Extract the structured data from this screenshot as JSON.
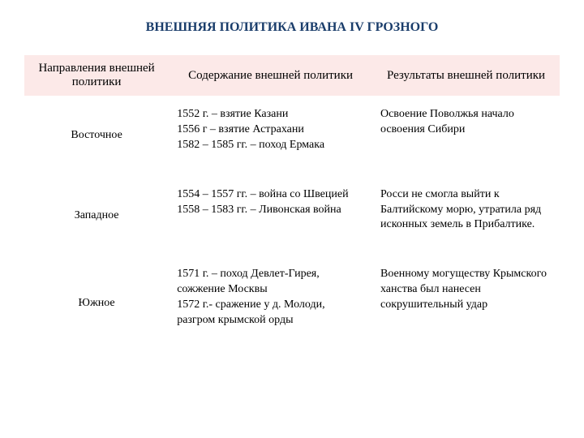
{
  "title": "ВНЕШНЯЯ ПОЛИТИКА ИВАНА IV ГРОЗНОГО",
  "table": {
    "headers": {
      "col1": "Направления внешней политики",
      "col2": "Содержание внешней политики",
      "col3": "Результаты внешней политики"
    },
    "rows": [
      {
        "direction": "Восточное",
        "content": "1552 г. – взятие Казани\n1556 г – взятие Астрахани\n1582 – 1585 гг. – поход Ермака",
        "results": "Освоение Поволжья начало освоения Сибири"
      },
      {
        "direction": "Западное",
        "content": "1554 – 1557 гг. – война со Швецией\n1558 – 1583 гг. – Ливонская война",
        "results": "Росси не смогла выйти к Балтийскому морю, утратила ряд исконных земель в Прибалтике."
      },
      {
        "direction": "Южное",
        "content": "1571 г. – поход Девлет-Гирея, сожжение Москвы\n1572 г.- сражение у д. Молоди, разгром крымской орды",
        "results": "Военному могуществу Крымского ханства был нанесен сокрушительный удар"
      }
    ]
  },
  "colors": {
    "title_color": "#1a3d6b",
    "header_bg": "#fce9e8",
    "text_color": "#000000",
    "background": "#ffffff"
  },
  "fonts": {
    "title_size": 16,
    "header_size": 15,
    "cell_size": 14,
    "family": "Times New Roman"
  }
}
